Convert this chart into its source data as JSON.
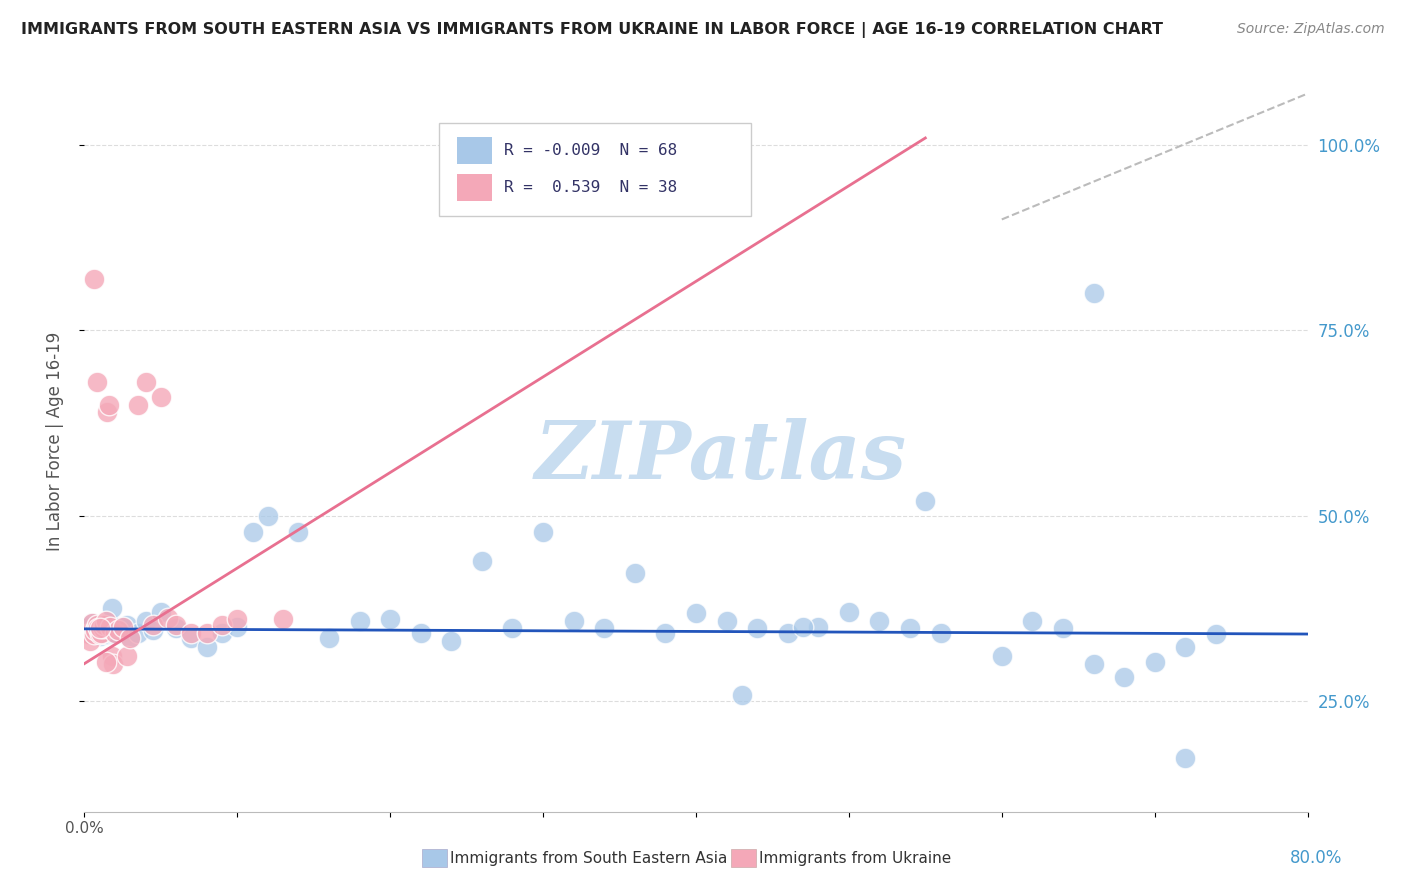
{
  "title": "IMMIGRANTS FROM SOUTH EASTERN ASIA VS IMMIGRANTS FROM UKRAINE IN LABOR FORCE | AGE 16-19 CORRELATION CHART",
  "source": "Source: ZipAtlas.com",
  "xlabel_bottom": "Immigrants from South Eastern Asia",
  "xlabel_bottom2": "Immigrants from Ukraine",
  "ylabel": "In Labor Force | Age 16-19",
  "xlim": [
    0.0,
    0.8
  ],
  "ylim": [
    0.1,
    1.1
  ],
  "y_ticks": [
    0.25,
    0.5,
    0.75,
    1.0
  ],
  "y_tick_labels": [
    "25.0%",
    "50.0%",
    "75.0%",
    "100.0%"
  ],
  "blue_color": "#a8c8e8",
  "pink_color": "#f4a8b8",
  "blue_line_color": "#2255bb",
  "pink_line_color": "#e87090",
  "ref_line_color": "#bbbbbb",
  "text_color": "#333366",
  "label_color": "#555555",
  "watermark_color": "#c8ddf0",
  "grid_color": "#dddddd",
  "blue_scatter_x": [
    0.002,
    0.003,
    0.004,
    0.005,
    0.006,
    0.007,
    0.008,
    0.009,
    0.01,
    0.011,
    0.012,
    0.014,
    0.015,
    0.016,
    0.017,
    0.018,
    0.019,
    0.02,
    0.022,
    0.025,
    0.028,
    0.03,
    0.035,
    0.04,
    0.045,
    0.05,
    0.06,
    0.07,
    0.08,
    0.09,
    0.1,
    0.11,
    0.12,
    0.14,
    0.16,
    0.18,
    0.2,
    0.22,
    0.24,
    0.26,
    0.28,
    0.3,
    0.32,
    0.34,
    0.36,
    0.38,
    0.4,
    0.42,
    0.44,
    0.46,
    0.48,
    0.5,
    0.52,
    0.54,
    0.56,
    0.6,
    0.62,
    0.64,
    0.66,
    0.68,
    0.7,
    0.72,
    0.74,
    0.66,
    0.55,
    0.43,
    0.72,
    0.47
  ],
  "blue_scatter_y": [
    0.345,
    0.35,
    0.34,
    0.355,
    0.34,
    0.348,
    0.352,
    0.345,
    0.338,
    0.342,
    0.348,
    0.352,
    0.34,
    0.356,
    0.344,
    0.375,
    0.34,
    0.34,
    0.345,
    0.348,
    0.352,
    0.335,
    0.342,
    0.358,
    0.345,
    0.37,
    0.348,
    0.335,
    0.322,
    0.342,
    0.35,
    0.478,
    0.5,
    0.478,
    0.335,
    0.358,
    0.36,
    0.342,
    0.33,
    0.438,
    0.348,
    0.478,
    0.358,
    0.348,
    0.422,
    0.342,
    0.368,
    0.358,
    0.348,
    0.342,
    0.35,
    0.37,
    0.358,
    0.348,
    0.342,
    0.31,
    0.358,
    0.348,
    0.3,
    0.282,
    0.302,
    0.322,
    0.34,
    0.8,
    0.52,
    0.258,
    0.172,
    0.35
  ],
  "pink_scatter_x": [
    0.002,
    0.003,
    0.004,
    0.005,
    0.006,
    0.007,
    0.008,
    0.009,
    0.01,
    0.011,
    0.012,
    0.013,
    0.014,
    0.015,
    0.016,
    0.017,
    0.018,
    0.019,
    0.02,
    0.022,
    0.025,
    0.028,
    0.03,
    0.035,
    0.04,
    0.045,
    0.05,
    0.055,
    0.06,
    0.07,
    0.08,
    0.09,
    0.1,
    0.006,
    0.008,
    0.01,
    0.014,
    0.13
  ],
  "pink_scatter_y": [
    0.34,
    0.34,
    0.33,
    0.355,
    0.34,
    0.345,
    0.352,
    0.348,
    0.34,
    0.342,
    0.348,
    0.352,
    0.358,
    0.64,
    0.65,
    0.35,
    0.31,
    0.3,
    0.342,
    0.345,
    0.35,
    0.31,
    0.335,
    0.65,
    0.68,
    0.352,
    0.66,
    0.362,
    0.352,
    0.342,
    0.342,
    0.352,
    0.36,
    0.82,
    0.68,
    0.348,
    0.302,
    0.36
  ],
  "pink_line_x0": 0.0,
  "pink_line_y0": 0.3,
  "pink_line_x1": 0.55,
  "pink_line_y1": 1.01,
  "blue_line_x0": 0.0,
  "blue_line_y0": 0.347,
  "blue_line_x1": 0.8,
  "blue_line_y1": 0.34,
  "ref_line_x0": 0.6,
  "ref_line_y0": 0.9,
  "ref_line_x1": 0.8,
  "ref_line_y1": 1.07
}
